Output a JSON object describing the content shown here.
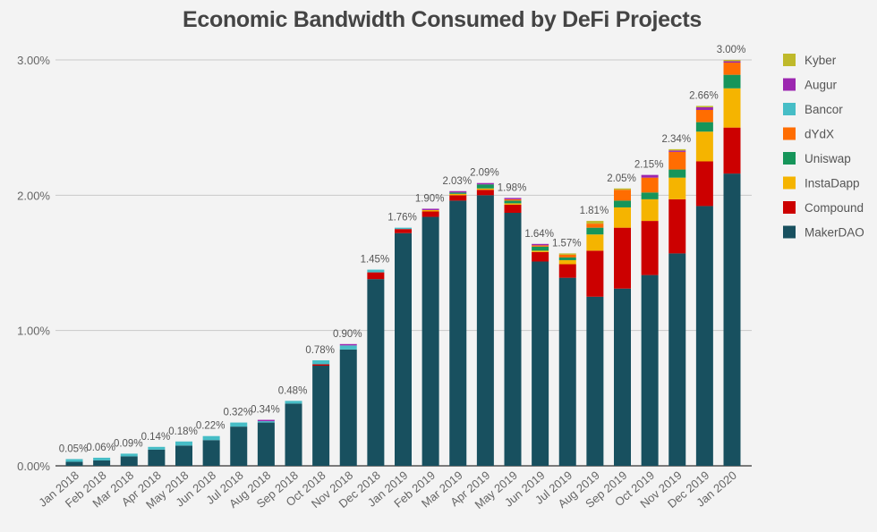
{
  "chart_data": {
    "type": "bar",
    "stacked": true,
    "title": "Economic Bandwidth Consumed by DeFi Projects",
    "xlabel": "",
    "ylabel": "",
    "ylim": [
      0,
      3
    ],
    "yticks": [
      0,
      1,
      2,
      3
    ],
    "ytick_labels": [
      "0.00%",
      "1.00%",
      "2.00%",
      "3.00%"
    ],
    "grid": true,
    "legend_position": "right",
    "categories": [
      "Jan 2018",
      "Feb 2018",
      "Mar 2018",
      "Apr 2018",
      "May 2018",
      "Jun 2018",
      "Jul 2018",
      "Aug 2018",
      "Sep 2018",
      "Oct 2018",
      "Nov 2018",
      "Dec 2018",
      "Jan 2019",
      "Feb 2019",
      "Mar 2019",
      "Apr 2019",
      "May 2019",
      "Jun 2019",
      "Jul 2019",
      "Aug 2019",
      "Sep 2019",
      "Oct 2019",
      "Nov 2019",
      "Dec 2019",
      "Jan 2020"
    ],
    "totals": [
      "0.05%",
      "0.06%",
      "0.09%",
      "0.14%",
      "0.18%",
      "0.22%",
      "0.32%",
      "0.34%",
      "0.48%",
      "0.78%",
      "0.90%",
      "1.45%",
      "1.76%",
      "1.90%",
      "2.03%",
      "2.09%",
      "1.98%",
      "1.64%",
      "1.57%",
      "1.81%",
      "2.05%",
      "2.15%",
      "2.34%",
      "2.66%",
      "3.00%"
    ],
    "series": [
      {
        "name": "MakerDAO",
        "color": "#18505f",
        "values": [
          0.03,
          0.04,
          0.07,
          0.12,
          0.15,
          0.19,
          0.29,
          0.32,
          0.46,
          0.74,
          0.86,
          1.38,
          1.72,
          1.84,
          1.96,
          2.0,
          1.87,
          1.51,
          1.39,
          1.25,
          1.31,
          1.41,
          1.57,
          1.92,
          2.16
        ]
      },
      {
        "name": "Compound",
        "color": "#cc0000",
        "values": [
          0,
          0,
          0,
          0,
          0,
          0,
          0,
          0,
          0,
          0.01,
          0,
          0.05,
          0.03,
          0.04,
          0.04,
          0.04,
          0.06,
          0.07,
          0.1,
          0.34,
          0.45,
          0.4,
          0.4,
          0.33,
          0.34
        ]
      },
      {
        "name": "InstaDapp",
        "color": "#f5b400",
        "values": [
          0,
          0,
          0,
          0,
          0,
          0,
          0,
          0,
          0,
          0,
          0,
          0,
          0,
          0.01,
          0.01,
          0.01,
          0.01,
          0.01,
          0.03,
          0.12,
          0.15,
          0.16,
          0.16,
          0.22,
          0.29
        ]
      },
      {
        "name": "Uniswap",
        "color": "#16955a",
        "values": [
          0,
          0,
          0,
          0,
          0,
          0,
          0,
          0,
          0,
          0,
          0,
          0,
          0,
          0,
          0.01,
          0.03,
          0.02,
          0.03,
          0.02,
          0.05,
          0.05,
          0.05,
          0.06,
          0.07,
          0.1
        ]
      },
      {
        "name": "dYdX",
        "color": "#ff6d01",
        "values": [
          0,
          0,
          0,
          0,
          0,
          0,
          0,
          0,
          0,
          0,
          0,
          0,
          0,
          0,
          0,
          0,
          0.01,
          0.01,
          0.02,
          0.03,
          0.08,
          0.11,
          0.13,
          0.09,
          0.09
        ]
      },
      {
        "name": "Bancor",
        "color": "#46bdc6",
        "values": [
          0.02,
          0.02,
          0.02,
          0.02,
          0.03,
          0.03,
          0.03,
          0.01,
          0.02,
          0.03,
          0.03,
          0.02,
          0.01,
          0,
          0,
          0,
          0,
          0,
          0,
          0,
          0,
          0,
          0,
          0,
          0
        ]
      },
      {
        "name": "Augur",
        "color": "#9c27b0",
        "values": [
          0,
          0,
          0,
          0,
          0,
          0,
          0,
          0.01,
          0,
          0,
          0.01,
          0,
          0,
          0.01,
          0.01,
          0.01,
          0.01,
          0.01,
          0,
          0,
          0,
          0.02,
          0.01,
          0.02,
          0.01
        ]
      },
      {
        "name": "Kyber",
        "color": "#bfb92a",
        "values": [
          0,
          0,
          0,
          0,
          0,
          0,
          0,
          0,
          0,
          0,
          0,
          0,
          0,
          0,
          0,
          0,
          0,
          0,
          0.01,
          0.02,
          0.01,
          0,
          0.01,
          0.01,
          0.01
        ]
      }
    ]
  }
}
